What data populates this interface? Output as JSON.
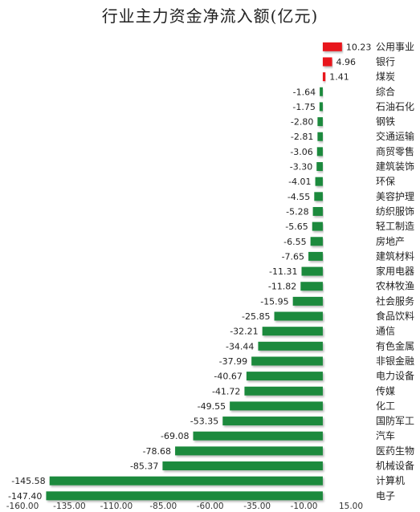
{
  "chart_data": {
    "type": "bar",
    "orientation": "horizontal",
    "title": "行业主力资金净流入额(亿元)",
    "xlabel": "",
    "ylabel": "",
    "xlim": [
      -160,
      15
    ],
    "x_ticks": [
      -160,
      -135,
      -110,
      -85,
      -60,
      -35,
      -10,
      15
    ],
    "x_tick_labels": [
      "-160.00",
      "-135.00",
      "-110.00",
      "-85.00",
      "-60.00",
      "-35.00",
      "-10.00",
      "15.00"
    ],
    "grid": false,
    "legend": "none",
    "positive_color": "#e8131c",
    "negative_color": "#1e8a3e",
    "categories": [
      "公用事业",
      "银行",
      "煤炭",
      "综合",
      "石油石化",
      "钢铁",
      "交通运输",
      "商贸零售",
      "建筑装饰",
      "环保",
      "美容护理",
      "纺织服饰",
      "轻工制造",
      "房地产",
      "建筑材料",
      "家用电器",
      "农林牧渔",
      "社会服务",
      "食品饮料",
      "通信",
      "有色金属",
      "非银金融",
      "电力设备",
      "传媒",
      "化工",
      "国防军工",
      "汽车",
      "医药生物",
      "机械设备",
      "计算机",
      "电子"
    ],
    "values": [
      10.23,
      4.96,
      1.41,
      -1.64,
      -1.75,
      -2.8,
      -2.81,
      -3.06,
      -3.3,
      -4.01,
      -4.55,
      -5.28,
      -5.65,
      -6.55,
      -7.65,
      -11.31,
      -11.82,
      -15.95,
      -25.85,
      -32.21,
      -34.44,
      -37.99,
      -40.67,
      -41.72,
      -49.55,
      -53.35,
      -69.08,
      -78.68,
      -85.37,
      -145.58,
      -147.4
    ],
    "value_labels": [
      "10.23",
      "4.96",
      "1.41",
      "-1.64",
      "-1.75",
      "-2.80",
      "-2.81",
      "-3.06",
      "-3.30",
      "-4.01",
      "-4.55",
      "-5.28",
      "-5.65",
      "-6.55",
      "-7.65",
      "-11.31",
      "-11.82",
      "-15.95",
      "-25.85",
      "-32.21",
      "-34.44",
      "-37.99",
      "-40.67",
      "-41.72",
      "-49.55",
      "-53.35",
      "-69.08",
      "-78.68",
      "-85.37",
      "-145.58",
      "-147.40"
    ]
  }
}
